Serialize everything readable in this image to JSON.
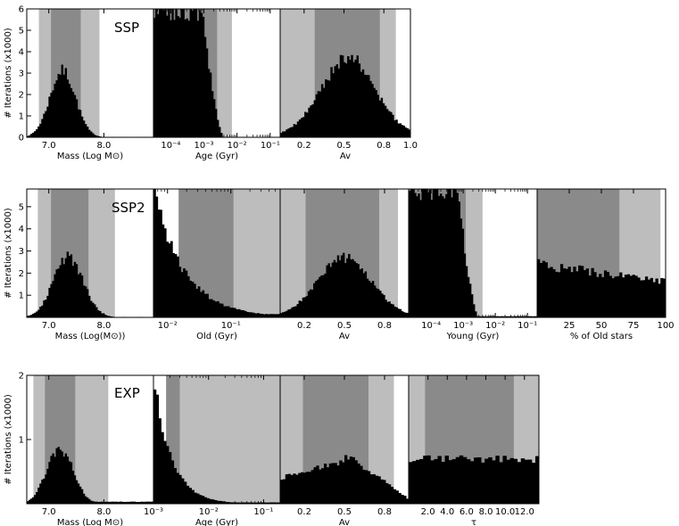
{
  "figure": {
    "ylabel": "# Iterations (x1000)"
  },
  "chart_data": [
    {
      "type": "bar",
      "title": "SSP",
      "ylabel": "# Iterations (x1000)",
      "ylim": [
        0,
        6
      ],
      "yticks": [
        "0",
        "1",
        "2",
        "3",
        "4",
        "5",
        "6"
      ],
      "panels": [
        {
          "xlabel": "Mass (Log M⊙)",
          "xlim": [
            6.6,
            8.9
          ],
          "xticks": [
            {
              "v": 7.0,
              "label": "7.0"
            },
            {
              "v": 8.0,
              "label": "8.0"
            }
          ],
          "bands": {
            "outer": [
              6.82,
              7.92
            ],
            "inner": [
              7.04,
              7.58
            ]
          },
          "shape": {
            "kind": "gauss",
            "mu": 7.25,
            "sigma": 0.23,
            "peak": 3.1,
            "base": 0.0,
            "floor": 0.02
          },
          "bins": 70
        },
        {
          "xlabel": "Age (Gyr)",
          "xlim": [
            3e-05,
            0.2
          ],
          "log": true,
          "xticks": [
            {
              "v": 0.0001,
              "label": "10⁻⁴"
            },
            {
              "v": 0.001,
              "label": "10⁻³"
            },
            {
              "v": 0.01,
              "label": "10⁻²"
            },
            {
              "v": 0.1,
              "label": "10⁻¹"
            }
          ],
          "bands": {
            "outer": [
              3e-05,
              0.007
            ],
            "inner": [
              3e-05,
              0.0025
            ]
          },
          "shape": {
            "kind": "stepdown",
            "start": 0.0009,
            "end": 0.004,
            "high": 6.0,
            "floor": 0.02
          },
          "bins": 70
        },
        {
          "xlabel": "Av",
          "xlim": [
            0.02,
            1.0
          ],
          "xticks": [
            {
              "v": 0.2,
              "label": "0.2"
            },
            {
              "v": 0.5,
              "label": "0.5"
            },
            {
              "v": 0.8,
              "label": "0.8"
            },
            {
              "v": 1.0,
              "label": "1.0"
            }
          ],
          "bands": {
            "outer": [
              0.02,
              0.89
            ],
            "inner": [
              0.28,
              0.77
            ]
          },
          "shape": {
            "kind": "gauss",
            "mu": 0.53,
            "sigma": 0.19,
            "peak": 3.0,
            "base": 0.8,
            "floor": 0.05
          },
          "bins": 70
        }
      ]
    },
    {
      "type": "bar",
      "title": "SSP2",
      "ylabel": "# Iterations (x1000)",
      "ylim": [
        0,
        5.8
      ],
      "yticks": [
        "1",
        "2",
        "3",
        "4",
        "5"
      ],
      "panels": [
        {
          "xlabel": "Mass (Log(M⊙))",
          "xlim": [
            6.6,
            8.9
          ],
          "xticks": [
            {
              "v": 7.0,
              "label": "7.0"
            },
            {
              "v": 8.0,
              "label": "8.0"
            }
          ],
          "bands": {
            "outer": [
              6.8,
              8.2
            ],
            "inner": [
              7.04,
              7.72
            ]
          },
          "shape": {
            "kind": "gauss",
            "mu": 7.35,
            "sigma": 0.27,
            "peak": 2.7,
            "base": 0.0,
            "floor": 0.02
          },
          "bins": 70
        },
        {
          "xlabel": "Old (Gyr)",
          "xlim": [
            0.006,
            0.6
          ],
          "log": true,
          "xticks": [
            {
              "v": 0.01,
              "label": "10⁻²"
            },
            {
              "v": 0.1,
              "label": "10⁻¹"
            }
          ],
          "bands": {
            "outer": [
              0.015,
              0.6
            ],
            "inner": [
              0.015,
              0.11
            ]
          },
          "shape": {
            "kind": "decay",
            "start": 0.006,
            "high": 5.8,
            "rate": 2.1,
            "floor": 0.15
          },
          "bins": 60
        },
        {
          "xlabel": "Av",
          "xlim": [
            0.02,
            0.98
          ],
          "xticks": [
            {
              "v": 0.2,
              "label": "0.2"
            },
            {
              "v": 0.5,
              "label": "0.5"
            },
            {
              "v": 0.8,
              "label": "0.8"
            }
          ],
          "bands": {
            "outer": [
              0.02,
              0.9
            ],
            "inner": [
              0.21,
              0.76
            ]
          },
          "shape": {
            "kind": "gauss",
            "mu": 0.5,
            "sigma": 0.2,
            "peak": 2.5,
            "base": 0.2,
            "floor": 0.02
          },
          "bins": 70
        },
        {
          "xlabel": "Young (Gyr)",
          "xlim": [
            2e-05,
            0.2
          ],
          "log": true,
          "xticks": [
            {
              "v": 0.0001,
              "label": "10⁻⁴"
            },
            {
              "v": 0.001,
              "label": "10⁻³"
            },
            {
              "v": 0.01,
              "label": "10⁻²"
            },
            {
              "v": 0.1,
              "label": "10⁻¹"
            }
          ],
          "bands": {
            "outer": [
              2e-05,
              0.004
            ],
            "inner": [
              2e-05,
              0.0012
            ]
          },
          "shape": {
            "kind": "stepdown",
            "start": 0.0007,
            "end": 0.003,
            "high": 5.8,
            "floor": 0.05
          },
          "bins": 70
        },
        {
          "xlabel": "% of Old stars",
          "xlim": [
            0,
            100
          ],
          "xticks": [
            {
              "v": 25,
              "label": "25"
            },
            {
              "v": 50,
              "label": "50"
            },
            {
              "v": 75,
              "label": "75"
            },
            {
              "v": 100,
              "label": "100"
            }
          ],
          "bands": {
            "outer": [
              0,
              96
            ],
            "inner": [
              0,
              64
            ]
          },
          "shape": {
            "kind": "flat",
            "start": 2.4,
            "end": 1.6,
            "floor": 0.02
          },
          "bins": 50
        }
      ]
    },
    {
      "type": "bar",
      "title": "EXP",
      "ylabel": "# Iterations (x1000)",
      "ylim": [
        0,
        2
      ],
      "yticks": [
        "1",
        "2"
      ],
      "panels": [
        {
          "xlabel": "Mass (Log M⊙)",
          "xlim": [
            6.6,
            8.9
          ],
          "xticks": [
            {
              "v": 7.0,
              "label": "7.0"
            },
            {
              "v": 8.0,
              "label": "8.0"
            }
          ],
          "bands": {
            "outer": [
              6.72,
              8.08
            ],
            "inner": [
              6.93,
              7.48
            ]
          },
          "shape": {
            "kind": "gauss",
            "mu": 7.2,
            "sigma": 0.24,
            "peak": 0.85,
            "base": 0.0,
            "floor": 0.03
          },
          "bins": 70
        },
        {
          "xlabel": "Age (Gyr)",
          "xlim": [
            0.001,
            0.2
          ],
          "log": true,
          "xticks": [
            {
              "v": 0.001,
              "label": "10⁻³"
            },
            {
              "v": 0.01,
              "label": "10⁻²"
            },
            {
              "v": 0.1,
              "label": "10⁻¹"
            }
          ],
          "bands": {
            "outer": [
              0.0017,
              0.2
            ],
            "inner": [
              0.0017,
              0.003
            ]
          },
          "shape": {
            "kind": "decay",
            "start": 0.001,
            "high": 2.0,
            "rate": 3.2,
            "floor": 0.02
          },
          "bins": 50
        },
        {
          "xlabel": "Av",
          "xlim": [
            0.02,
            0.98
          ],
          "xticks": [
            {
              "v": 0.2,
              "label": "0.2"
            },
            {
              "v": 0.5,
              "label": "0.5"
            },
            {
              "v": 0.8,
              "label": "0.8"
            }
          ],
          "bands": {
            "outer": [
              0.02,
              0.87
            ],
            "inner": [
              0.19,
              0.68
            ]
          },
          "shape": {
            "kind": "plateau",
            "level": 0.72,
            "from": 0.55,
            "to": 0.98,
            "floor": 0.05
          },
          "bins": 50
        },
        {
          "xlabel": "τ",
          "xlim": [
            0,
            13.5
          ],
          "xticks": [
            {
              "v": 2,
              "label": "2.0"
            },
            {
              "v": 4,
              "label": "4.0"
            },
            {
              "v": 6,
              "label": "6.0"
            },
            {
              "v": 8,
              "label": "8.0"
            },
            {
              "v": 10,
              "label": "10.0"
            },
            {
              "v": 12,
              "label": "12.0"
            }
          ],
          "bands": {
            "outer": [
              0,
              13.5
            ],
            "inner": [
              1.7,
              10.9
            ]
          },
          "shape": {
            "kind": "flat",
            "start": 0.7,
            "end": 0.7,
            "floor": 0.02
          },
          "bins": 36
        }
      ]
    }
  ]
}
